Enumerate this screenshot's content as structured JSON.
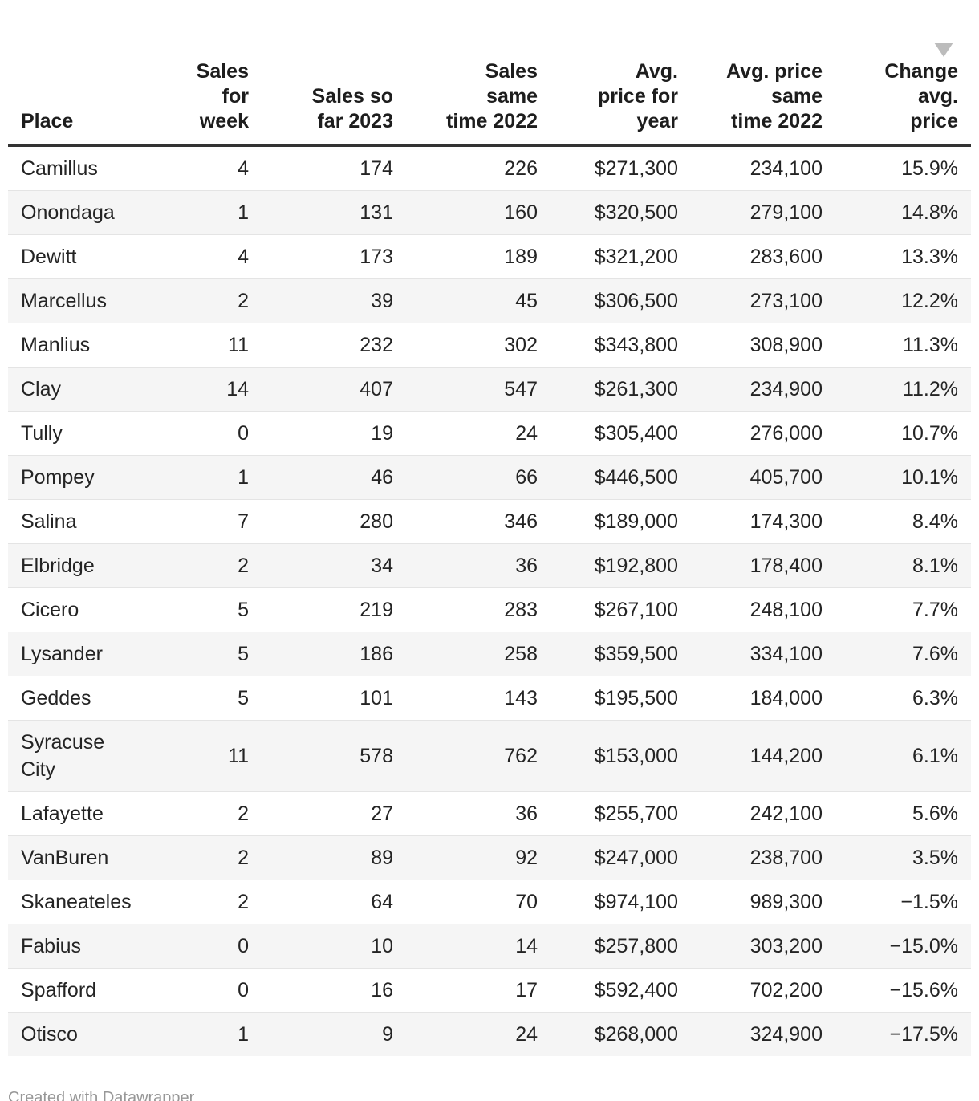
{
  "chart_data": {
    "type": "table",
    "title": "",
    "sort": {
      "column": "change",
      "direction": "desc"
    },
    "columns": [
      {
        "key": "place",
        "label": "Place",
        "align": "left",
        "sorted": false
      },
      {
        "key": "sales_week",
        "label": "Sales\nfor\nweek",
        "align": "right",
        "sorted": false
      },
      {
        "key": "sales_2023",
        "label": "Sales so\nfar 2023",
        "align": "right",
        "sorted": false
      },
      {
        "key": "sales_2022",
        "label": "Sales\nsame\ntime 2022",
        "align": "right",
        "sorted": false
      },
      {
        "key": "avg_price",
        "label": "Avg.\nprice for\nyear",
        "align": "right",
        "sorted": false
      },
      {
        "key": "avg_2022",
        "label": "Avg. price\nsame\ntime 2022",
        "align": "right",
        "sorted": false
      },
      {
        "key": "change",
        "label": "Change\navg.\nprice",
        "align": "right",
        "sorted": true
      }
    ],
    "rows": [
      [
        "Camillus",
        "4",
        "174",
        "226",
        "$271,300",
        "234,100",
        "15.9%"
      ],
      [
        "Onondaga",
        "1",
        "131",
        "160",
        "$320,500",
        "279,100",
        "14.8%"
      ],
      [
        "Dewitt",
        "4",
        "173",
        "189",
        "$321,200",
        "283,600",
        "13.3%"
      ],
      [
        "Marcellus",
        "2",
        "39",
        "45",
        "$306,500",
        "273,100",
        "12.2%"
      ],
      [
        "Manlius",
        "11",
        "232",
        "302",
        "$343,800",
        "308,900",
        "11.3%"
      ],
      [
        "Clay",
        "14",
        "407",
        "547",
        "$261,300",
        "234,900",
        "11.2%"
      ],
      [
        "Tully",
        "0",
        "19",
        "24",
        "$305,400",
        "276,000",
        "10.7%"
      ],
      [
        "Pompey",
        "1",
        "46",
        "66",
        "$446,500",
        "405,700",
        "10.1%"
      ],
      [
        "Salina",
        "7",
        "280",
        "346",
        "$189,000",
        "174,300",
        "8.4%"
      ],
      [
        "Elbridge",
        "2",
        "34",
        "36",
        "$192,800",
        "178,400",
        "8.1%"
      ],
      [
        "Cicero",
        "5",
        "219",
        "283",
        "$267,100",
        "248,100",
        "7.7%"
      ],
      [
        "Lysander",
        "5",
        "186",
        "258",
        "$359,500",
        "334,100",
        "7.6%"
      ],
      [
        "Geddes",
        "5",
        "101",
        "143",
        "$195,500",
        "184,000",
        "6.3%"
      ],
      [
        "Syracuse\nCity",
        "11",
        "578",
        "762",
        "$153,000",
        "144,200",
        "6.1%"
      ],
      [
        "Lafayette",
        "2",
        "27",
        "36",
        "$255,700",
        "242,100",
        "5.6%"
      ],
      [
        "VanBuren",
        "2",
        "89",
        "92",
        "$247,000",
        "238,700",
        "3.5%"
      ],
      [
        "Skaneateles",
        "2",
        "64",
        "70",
        "$974,100",
        "989,300",
        "−1.5%"
      ],
      [
        "Fabius",
        "0",
        "10",
        "14",
        "$257,800",
        "303,200",
        "−15.0%"
      ],
      [
        "Spafford",
        "0",
        "16",
        "17",
        "$592,400",
        "702,200",
        "−15.6%"
      ],
      [
        "Otisco",
        "1",
        "9",
        "24",
        "$268,000",
        "324,900",
        "−17.5%"
      ]
    ]
  },
  "icons": {
    "sort_descending": "triangle-down"
  },
  "footer": {
    "credit": "Created with Datawrapper"
  },
  "colors": {
    "header_rule": "#333333",
    "row_line": "#e4e4e4",
    "row_stripe": "#f5f5f5",
    "sort_triangle": "#bcbcbc",
    "credit_text": "#979797",
    "text": "#242424"
  }
}
